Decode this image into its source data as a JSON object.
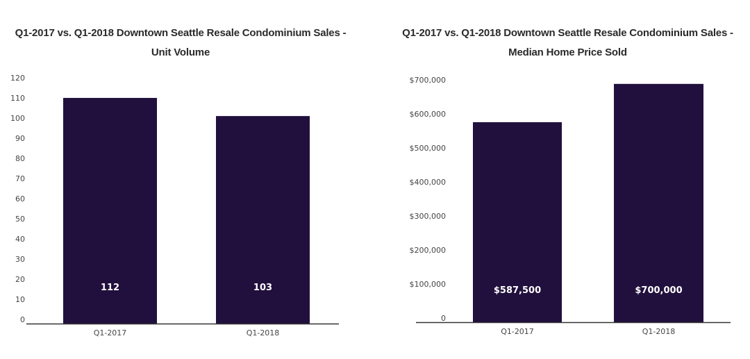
{
  "chart_data": [
    {
      "type": "bar",
      "title": "Q1-2017 vs. Q1-2018 Downtown Seattle Resale Condominium Sales - Unit Volume",
      "title_lines": [
        "Q1-2017 vs. Q1-2018 Downtown Seattle Resale Condominium Sales -",
        "Unit Volume"
      ],
      "categories": [
        "Q1-2017",
        "Q1-2018"
      ],
      "values": [
        112,
        103
      ],
      "value_labels": [
        "112",
        "103"
      ],
      "yticks": [
        0,
        10,
        20,
        30,
        40,
        50,
        60,
        70,
        80,
        90,
        100,
        110,
        120
      ],
      "ytick_labels": [
        "0",
        "10",
        "20",
        "30",
        "40",
        "50",
        "60",
        "70",
        "80",
        "90",
        "100",
        "110",
        "120"
      ],
      "ylim": [
        0,
        122
      ],
      "xlabel": "",
      "ylabel": "",
      "grid": false,
      "bar_color": "#21103d"
    },
    {
      "type": "bar",
      "title": "Q1-2017 vs. Q1-2018 Downtown Seattle Resale Condominium Sales - Median Home Price Sold",
      "title_lines": [
        "Q1-2017 vs. Q1-2018 Downtown Seattle Resale Condominium Sales -",
        "Median Home Price Sold"
      ],
      "categories": [
        "Q1-2017",
        "Q1-2018"
      ],
      "values": [
        587500,
        700000
      ],
      "value_labels": [
        "$587,500",
        "$700,000"
      ],
      "yticks": [
        0,
        100000,
        200000,
        300000,
        400000,
        500000,
        600000,
        700000
      ],
      "ytick_labels": [
        "0",
        "$100,000",
        "$200,000",
        "$300,000",
        "$400,000",
        "$500,000",
        "$600,000",
        "$700,000"
      ],
      "ylim": [
        0,
        718000
      ],
      "xlabel": "",
      "ylabel": "",
      "grid": false,
      "bar_color": "#21103d"
    }
  ]
}
